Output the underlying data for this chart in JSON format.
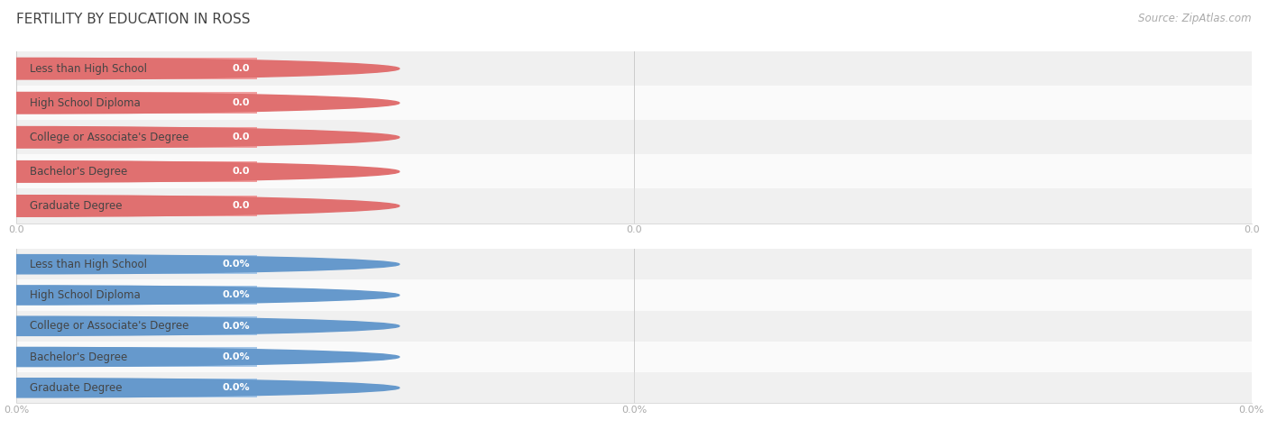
{
  "title": "FERTILITY BY EDUCATION IN ROSS",
  "source_text": "Source: ZipAtlas.com",
  "categories": [
    "Less than High School",
    "High School Diploma",
    "College or Associate's Degree",
    "Bachelor's Degree",
    "Graduate Degree"
  ],
  "top_values": [
    0.0,
    0.0,
    0.0,
    0.0,
    0.0
  ],
  "bottom_values": [
    0.0,
    0.0,
    0.0,
    0.0,
    0.0
  ],
  "top_bar_color": "#f0a0a0",
  "top_circle_color": "#e07070",
  "bottom_bar_color": "#a8c8e8",
  "bottom_circle_color": "#6699cc",
  "white_pill_color": "#ffffff",
  "row_bg_even": "#f0f0f0",
  "row_bg_odd": "#fafafa",
  "title_color": "#444444",
  "tick_label_color": "#aaaaaa",
  "source_color": "#aaaaaa",
  "grid_color": "#cccccc",
  "label_color": "#444444",
  "value_color_top": "#ffffff",
  "value_color_bottom": "#ffffff",
  "title_fontsize": 11,
  "label_fontsize": 8.5,
  "value_fontsize": 8,
  "tick_fontsize": 8,
  "source_fontsize": 8.5
}
